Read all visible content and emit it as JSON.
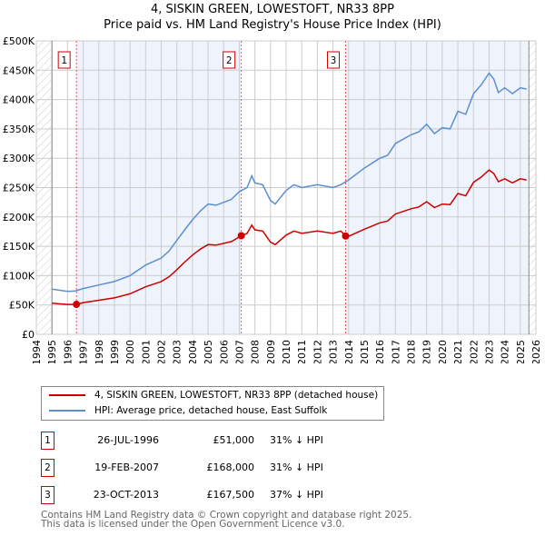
{
  "title_line1": "4, SISKIN GREEN, LOWESTOFT, NR33 8PP",
  "title_line2": "Price paid vs. HM Land Registry's House Price Index (HPI)",
  "chart_data": {
    "type": "line",
    "title": "4, SISKIN GREEN, LOWESTOFT, NR33 8PP — Price paid vs. HM Land Registry's House Price Index (HPI)",
    "xlim": [
      1994,
      2026
    ],
    "ylim": [
      0,
      500000
    ],
    "y_ticks": [
      0,
      50000,
      100000,
      150000,
      200000,
      250000,
      300000,
      350000,
      400000,
      450000,
      500000
    ],
    "y_tick_labels": [
      "£0",
      "£50K",
      "£100K",
      "£150K",
      "£200K",
      "£250K",
      "£300K",
      "£350K",
      "£400K",
      "£450K",
      "£500K"
    ],
    "x_ticks": [
      1994,
      1995,
      1996,
      1997,
      1998,
      1999,
      2000,
      2001,
      2002,
      2003,
      2004,
      2005,
      2006,
      2007,
      2008,
      2009,
      2010,
      2011,
      2012,
      2013,
      2014,
      2015,
      2016,
      2017,
      2018,
      2019,
      2020,
      2021,
      2022,
      2023,
      2024,
      2025,
      2026
    ],
    "grid": true,
    "colors": {
      "property": "#cc0000",
      "hpi": "#5b8fd0",
      "shade": "#eef3fc"
    },
    "series": [
      {
        "name": "4, SISKIN GREEN, LOWESTOFT, NR33 8PP (detached house)",
        "color": "#cc0000",
        "x": [
          1995,
          1996,
          1996.57,
          1997,
          1998,
          1999,
          2000,
          2001,
          2002,
          2002.5,
          2003,
          2003.5,
          2004,
          2004.5,
          2005,
          2005.5,
          2006,
          2006.5,
          2007.13,
          2007.5,
          2007.8,
          2008,
          2008.5,
          2009,
          2009.3,
          2010,
          2010.5,
          2011,
          2012,
          2013,
          2013.5,
          2013.81,
          2014,
          2015,
          2016,
          2016.5,
          2017,
          2018,
          2018.5,
          2019,
          2019.5,
          2020,
          2020.5,
          2021,
          2021.5,
          2022,
          2022.5,
          2023,
          2023.3,
          2023.6,
          2024,
          2024.5,
          2025,
          2025.4
        ],
        "y": [
          53000,
          51000,
          51000,
          54000,
          58000,
          62000,
          69000,
          81000,
          90000,
          98000,
          110000,
          123000,
          135000,
          145000,
          153000,
          152000,
          155000,
          158000,
          168000,
          172000,
          186000,
          178000,
          176000,
          157000,
          153000,
          169000,
          176000,
          172000,
          176000,
          172000,
          176000,
          167500,
          167000,
          179000,
          190000,
          193000,
          205000,
          214000,
          217000,
          226000,
          216000,
          222000,
          221000,
          240000,
          236000,
          259000,
          268000,
          280000,
          274000,
          260000,
          265000,
          258000,
          265000,
          263000
        ]
      },
      {
        "name": "HPI: Average price, detached house, East Suffolk",
        "color": "#5b8fd0",
        "x": [
          1995,
          1996,
          1996.5,
          1997,
          1998,
          1999,
          2000,
          2001,
          2002,
          2002.5,
          2003,
          2003.5,
          2004,
          2004.5,
          2005,
          2005.5,
          2006,
          2006.5,
          2007,
          2007.5,
          2007.8,
          2008,
          2008.5,
          2009,
          2009.3,
          2010,
          2010.5,
          2011,
          2012,
          2013,
          2013.5,
          2014,
          2015,
          2016,
          2016.5,
          2017,
          2018,
          2018.5,
          2019,
          2019.5,
          2020,
          2020.5,
          2021,
          2021.5,
          2022,
          2022.5,
          2023,
          2023.3,
          2023.6,
          2024,
          2024.5,
          2025,
          2025.4
        ],
        "y": [
          77000,
          73000,
          74000,
          78000,
          84000,
          90000,
          100000,
          118000,
          130000,
          142000,
          160000,
          178000,
          195000,
          210000,
          222000,
          220000,
          225000,
          230000,
          243000,
          250000,
          270000,
          258000,
          255000,
          228000,
          222000,
          245000,
          255000,
          250000,
          255000,
          250000,
          255000,
          263000,
          283000,
          300000,
          305000,
          325000,
          340000,
          345000,
          358000,
          342000,
          352000,
          350000,
          380000,
          375000,
          410000,
          425000,
          445000,
          435000,
          412000,
          420000,
          410000,
          420000,
          418000
        ]
      }
    ],
    "sales": [
      {
        "num": "1",
        "x": 1996.57,
        "price": 51000,
        "date": "26-JUL-1996",
        "price_label": "£51,000",
        "hpi": "31% ↓ HPI"
      },
      {
        "num": "2",
        "x": 2007.13,
        "price": 168000,
        "date": "19-FEB-2007",
        "price_label": "£168,000",
        "hpi": "31% ↓ HPI"
      },
      {
        "num": "3",
        "x": 2013.81,
        "price": 167500,
        "date": "23-OCT-2013",
        "price_label": "£167,500",
        "hpi": "37% ↓ HPI"
      }
    ],
    "legend_placement": "below"
  },
  "footer_line1": "Contains HM Land Registry data © Crown copyright and database right 2025.",
  "footer_line2": "This data is licensed under the Open Government Licence v3.0."
}
